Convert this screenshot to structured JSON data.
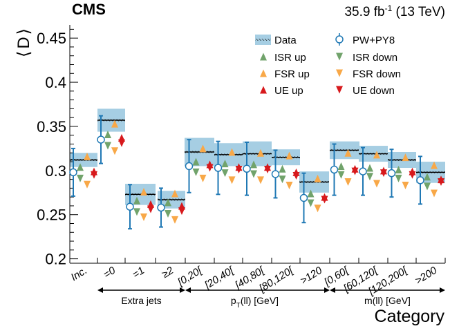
{
  "header": {
    "experiment": "CMS",
    "lumi_value": "35.9 fb",
    "lumi_exp": "-1",
    "lumi_energy": " (13 TeV)"
  },
  "chart_data": {
    "type": "scatter",
    "title": "",
    "ylabel_left": "⟨",
    "ylabel_mid": "D",
    "ylabel_right": "⟩",
    "xlabel": "Category",
    "ylim": [
      0.195,
      0.465
    ],
    "yticks": [
      0.2,
      0.25,
      0.3,
      0.35,
      0.4,
      0.45
    ],
    "ytick_labels": [
      "0.2",
      "0.25",
      "0.3",
      "0.35",
      "0.4",
      "0.45"
    ],
    "categories": [
      "Inc.",
      "=0",
      "=1",
      "≥2",
      "[0,20[",
      "[20,40[",
      "[40,80[",
      "[80,120[",
      ">120",
      "[0,60[",
      "[60,120[",
      "[120,200[",
      ">200"
    ],
    "groups": [
      {
        "label": "Extra jets",
        "from": 1,
        "to": 3
      },
      {
        "label_main": "p",
        "label_sub": "T",
        "label_rest": "(ll) [GeV]",
        "from": 4,
        "to": 8
      },
      {
        "label": "m(ll) [GeV]",
        "from": 9,
        "to": 12
      }
    ],
    "legend": {
      "data": "Data",
      "pwpy8": "PW+PY8",
      "isr_up": "ISR up",
      "isr_down": "ISR down",
      "fsr_up": "FSR up",
      "fsr_down": "FSR down",
      "ue_up": "UE up",
      "ue_down": "UE down"
    },
    "colors": {
      "data_band": "#a6cee3",
      "pwpy8": "#1f78b4",
      "isr": "#71a36b",
      "fsr": "#f8a848",
      "ue": "#d7191c",
      "data_line": "#000000"
    },
    "series": [
      {
        "name": "Data",
        "values": [
          0.312,
          0.357,
          0.273,
          0.267,
          0.321,
          0.318,
          0.319,
          0.315,
          0.287,
          0.323,
          0.319,
          0.312,
          0.298
        ],
        "band": [
          0.008,
          0.013,
          0.012,
          0.01,
          0.016,
          0.013,
          0.014,
          0.009,
          0.012,
          0.01,
          0.009,
          0.009,
          0.012
        ]
      },
      {
        "name": "PW+PY8",
        "values": [
          0.298,
          0.335,
          0.259,
          0.258,
          0.305,
          0.303,
          0.302,
          0.296,
          0.269,
          0.301,
          0.299,
          0.297,
          0.289
        ],
        "errors": [
          0.027,
          0.027,
          0.025,
          0.022,
          0.03,
          0.03,
          0.03,
          0.027,
          0.028,
          0.029,
          0.027,
          0.027,
          0.027
        ]
      },
      {
        "name": "ISR up",
        "values": [
          0.304,
          0.341,
          0.266,
          0.264,
          0.31,
          0.308,
          0.307,
          0.302,
          0.274,
          0.305,
          0.303,
          0.301,
          0.293
        ]
      },
      {
        "name": "ISR down",
        "values": [
          0.291,
          0.328,
          0.253,
          0.251,
          0.298,
          0.297,
          0.296,
          0.29,
          0.263,
          0.295,
          0.293,
          0.291,
          0.282
        ]
      },
      {
        "name": "FSR up",
        "values": [
          0.316,
          0.353,
          0.276,
          0.274,
          0.325,
          0.321,
          0.32,
          0.317,
          0.291,
          0.32,
          0.318,
          0.315,
          0.306
        ]
      },
      {
        "name": "FSR down",
        "values": [
          0.284,
          0.322,
          0.247,
          0.244,
          0.291,
          0.289,
          0.289,
          0.283,
          0.257,
          0.287,
          0.285,
          0.283,
          0.274
        ]
      },
      {
        "name": "UE up",
        "values": [
          0.299,
          0.337,
          0.262,
          0.26,
          0.307,
          0.304,
          0.304,
          0.298,
          0.27,
          0.302,
          0.3,
          0.299,
          0.29
        ]
      },
      {
        "name": "UE down",
        "values": [
          0.295,
          0.331,
          0.256,
          0.254,
          0.303,
          0.301,
          0.301,
          0.294,
          0.267,
          0.299,
          0.297,
          0.295,
          0.287
        ]
      }
    ]
  }
}
